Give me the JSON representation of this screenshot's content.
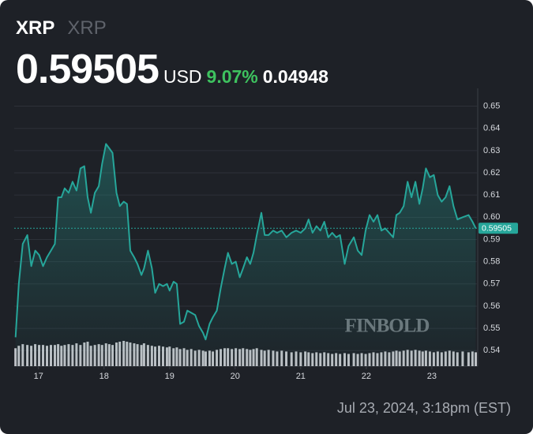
{
  "header": {
    "symbol": "XRP",
    "name": "XRP",
    "currency": "USD",
    "change_percent": "9.07%",
    "change": "0.04948",
    "timestamp": "Jul 23, 2024, 3:18pm (EST)"
  },
  "watermark": "FINBOLD",
  "chart_data": {
    "type": "line",
    "color": "#26a69a",
    "volume_color": "#d0d3d8",
    "grid": true,
    "last_price": 0.59505,
    "xlim": [
      16.63,
      23.7
    ],
    "xticks": [
      17,
      18,
      19,
      20,
      21,
      22,
      23
    ],
    "ylim": [
      0.533,
      0.658
    ],
    "yticks": [
      0.54,
      0.55,
      0.56,
      0.57,
      0.58,
      0.59,
      {
        "value": 0.6,
        "label": "0.60"
      },
      0.61,
      0.62,
      0.63,
      0.64,
      0.65
    ],
    "x": [
      16.65,
      16.7,
      16.76,
      16.83,
      16.89,
      16.95,
      17.01,
      17.07,
      17.13,
      17.19,
      17.25,
      17.3,
      17.35,
      17.4,
      17.46,
      17.52,
      17.58,
      17.64,
      17.7,
      17.75,
      17.8,
      17.86,
      17.92,
      17.97,
      18.03,
      18.08,
      18.13,
      18.19,
      18.24,
      18.3,
      18.35,
      18.4,
      18.46,
      18.51,
      18.57,
      18.61,
      18.67,
      18.73,
      18.78,
      18.84,
      18.9,
      18.96,
      19.0,
      19.06,
      19.11,
      19.16,
      19.22,
      19.27,
      19.33,
      19.39,
      19.45,
      19.51,
      19.55,
      19.61,
      19.66,
      19.72,
      19.78,
      19.84,
      19.89,
      19.95,
      20.01,
      20.07,
      20.12,
      20.18,
      20.23,
      20.28,
      20.33,
      20.4,
      20.45,
      20.51,
      20.58,
      20.64,
      20.71,
      20.78,
      20.86,
      20.93,
      21.0,
      21.07,
      21.12,
      21.18,
      21.24,
      21.3,
      21.36,
      21.42,
      21.48,
      21.54,
      21.6,
      21.67,
      21.73,
      21.81,
      21.87,
      21.93,
      21.99,
      22.05,
      22.11,
      22.17,
      22.23,
      22.29,
      22.35,
      22.41,
      22.46,
      22.51,
      22.57,
      22.63,
      22.69,
      22.75,
      22.81,
      22.86,
      22.91,
      22.97,
      23.03,
      23.09,
      23.15,
      23.21,
      23.27,
      23.33,
      23.39,
      23.47,
      23.56,
      23.62,
      23.67
    ],
    "values": [
      0.546,
      0.57,
      0.588,
      0.592,
      0.578,
      0.585,
      0.583,
      0.578,
      0.582,
      0.585,
      0.588,
      0.609,
      0.609,
      0.613,
      0.611,
      0.616,
      0.612,
      0.622,
      0.623,
      0.609,
      0.602,
      0.611,
      0.614,
      0.624,
      0.633,
      0.631,
      0.629,
      0.611,
      0.605,
      0.607,
      0.606,
      0.585,
      0.582,
      0.579,
      0.574,
      0.577,
      0.585,
      0.577,
      0.566,
      0.57,
      0.569,
      0.57,
      0.567,
      0.571,
      0.57,
      0.552,
      0.553,
      0.558,
      0.557,
      0.556,
      0.551,
      0.548,
      0.545,
      0.552,
      0.555,
      0.558,
      0.568,
      0.577,
      0.584,
      0.579,
      0.58,
      0.573,
      0.577,
      0.582,
      0.579,
      0.584,
      0.592,
      0.602,
      0.592,
      0.592,
      0.594,
      0.593,
      0.594,
      0.591,
      0.593,
      0.594,
      0.593,
      0.595,
      0.599,
      0.593,
      0.596,
      0.594,
      0.598,
      0.591,
      0.593,
      0.591,
      0.592,
      0.579,
      0.587,
      0.591,
      0.585,
      0.583,
      0.594,
      0.601,
      0.598,
      0.601,
      0.594,
      0.595,
      0.593,
      0.591,
      0.601,
      0.602,
      0.605,
      0.616,
      0.609,
      0.616,
      0.606,
      0.613,
      0.622,
      0.618,
      0.619,
      0.61,
      0.607,
      0.609,
      0.614,
      0.605,
      0.599,
      0.6,
      0.601,
      0.598,
      0.59505
    ],
    "volume": [
      22,
      25,
      27,
      26,
      25,
      27,
      26,
      26,
      25,
      26,
      26,
      27,
      25,
      26,
      27,
      26,
      28,
      26,
      29,
      30,
      25,
      26,
      27,
      26,
      28,
      27,
      26,
      29,
      30,
      31,
      30,
      29,
      28,
      27,
      26,
      28,
      26,
      25,
      24,
      25,
      24,
      23,
      24,
      22,
      23,
      21,
      22,
      20,
      21,
      19,
      20,
      19,
      18,
      19,
      18,
      20,
      21,
      22,
      22,
      21,
      22,
      21,
      22,
      21,
      20,
      21,
      22,
      20,
      19,
      20,
      19,
      18,
      19,
      18,
      17,
      18,
      17,
      18,
      17,
      16,
      17,
      16,
      17,
      16,
      15,
      16,
      15,
      16,
      15,
      16,
      15,
      16,
      15,
      16,
      17,
      16,
      17,
      18,
      17,
      18,
      19,
      18,
      19,
      20,
      19,
      20,
      19,
      18,
      19,
      18,
      17,
      18,
      17,
      18,
      19,
      18,
      17,
      18,
      17,
      18,
      17
    ]
  }
}
